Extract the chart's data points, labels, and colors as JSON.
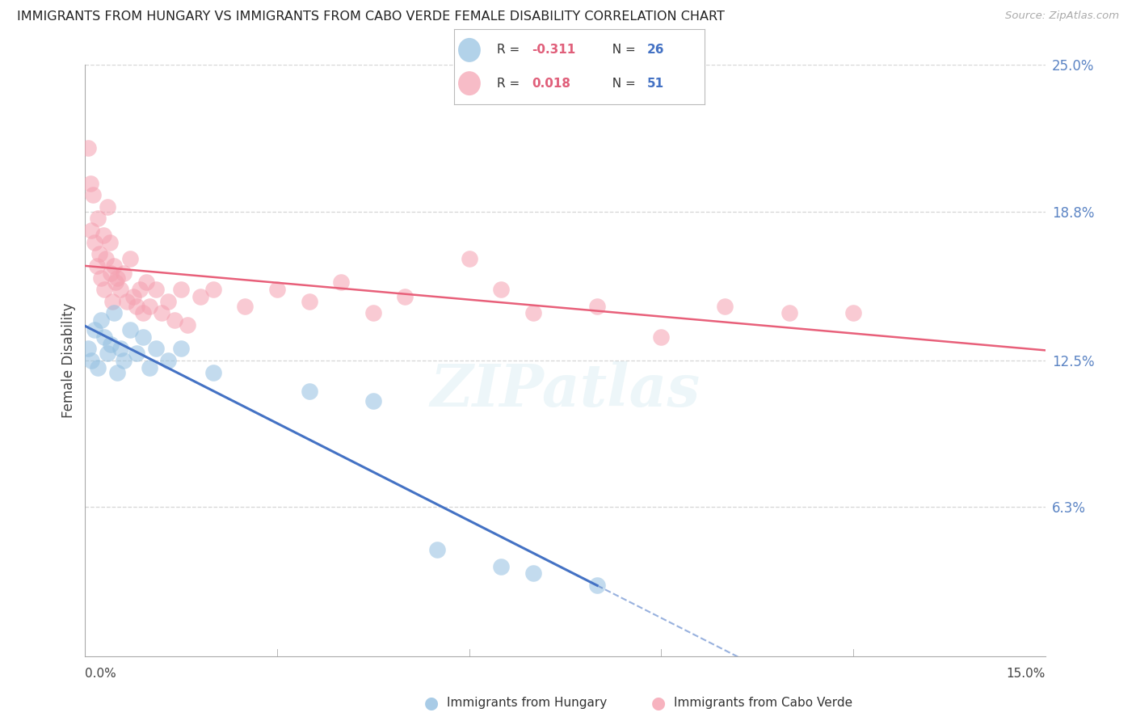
{
  "title": "IMMIGRANTS FROM HUNGARY VS IMMIGRANTS FROM CABO VERDE FEMALE DISABILITY CORRELATION CHART",
  "source": "Source: ZipAtlas.com",
  "ylabel": "Female Disability",
  "right_ytick_vals": [
    6.3,
    12.5,
    18.8,
    25.0
  ],
  "right_ytick_labels": [
    "6.3%",
    "12.5%",
    "18.8%",
    "25.0%"
  ],
  "xmin": 0.0,
  "xmax": 15.0,
  "ymin": 0.0,
  "ymax": 25.0,
  "hungary_color": "#92bfe0",
  "caboverde_color": "#f5a0b0",
  "hungary_R": -0.311,
  "hungary_N": 26,
  "caboverde_R": 0.018,
  "caboverde_N": 51,
  "hungary_points": [
    [
      0.05,
      13.0
    ],
    [
      0.1,
      12.5
    ],
    [
      0.15,
      13.8
    ],
    [
      0.2,
      12.2
    ],
    [
      0.25,
      14.2
    ],
    [
      0.3,
      13.5
    ],
    [
      0.35,
      12.8
    ],
    [
      0.4,
      13.2
    ],
    [
      0.45,
      14.5
    ],
    [
      0.5,
      12.0
    ],
    [
      0.55,
      13.0
    ],
    [
      0.6,
      12.5
    ],
    [
      0.7,
      13.8
    ],
    [
      0.8,
      12.8
    ],
    [
      0.9,
      13.5
    ],
    [
      1.0,
      12.2
    ],
    [
      1.1,
      13.0
    ],
    [
      1.3,
      12.5
    ],
    [
      1.5,
      13.0
    ],
    [
      2.0,
      12.0
    ],
    [
      3.5,
      11.2
    ],
    [
      4.5,
      10.8
    ],
    [
      5.5,
      4.5
    ],
    [
      6.5,
      3.8
    ],
    [
      7.0,
      3.5
    ],
    [
      8.0,
      3.0
    ]
  ],
  "caboverde_points": [
    [
      0.05,
      21.5
    ],
    [
      0.08,
      20.0
    ],
    [
      0.1,
      18.0
    ],
    [
      0.12,
      19.5
    ],
    [
      0.15,
      17.5
    ],
    [
      0.18,
      16.5
    ],
    [
      0.2,
      18.5
    ],
    [
      0.22,
      17.0
    ],
    [
      0.25,
      16.0
    ],
    [
      0.28,
      17.8
    ],
    [
      0.3,
      15.5
    ],
    [
      0.32,
      16.8
    ],
    [
      0.35,
      19.0
    ],
    [
      0.38,
      17.5
    ],
    [
      0.4,
      16.2
    ],
    [
      0.42,
      15.0
    ],
    [
      0.45,
      16.5
    ],
    [
      0.48,
      15.8
    ],
    [
      0.5,
      16.0
    ],
    [
      0.55,
      15.5
    ],
    [
      0.6,
      16.2
    ],
    [
      0.65,
      15.0
    ],
    [
      0.7,
      16.8
    ],
    [
      0.75,
      15.2
    ],
    [
      0.8,
      14.8
    ],
    [
      0.85,
      15.5
    ],
    [
      0.9,
      14.5
    ],
    [
      0.95,
      15.8
    ],
    [
      1.0,
      14.8
    ],
    [
      1.1,
      15.5
    ],
    [
      1.2,
      14.5
    ],
    [
      1.3,
      15.0
    ],
    [
      1.4,
      14.2
    ],
    [
      1.5,
      15.5
    ],
    [
      1.6,
      14.0
    ],
    [
      1.8,
      15.2
    ],
    [
      2.0,
      15.5
    ],
    [
      2.5,
      14.8
    ],
    [
      3.0,
      15.5
    ],
    [
      3.5,
      15.0
    ],
    [
      4.0,
      15.8
    ],
    [
      4.5,
      14.5
    ],
    [
      5.0,
      15.2
    ],
    [
      6.0,
      16.8
    ],
    [
      6.5,
      15.5
    ],
    [
      7.0,
      14.5
    ],
    [
      8.0,
      14.8
    ],
    [
      9.0,
      13.5
    ],
    [
      10.0,
      14.8
    ],
    [
      11.0,
      14.5
    ],
    [
      12.0,
      14.5
    ]
  ],
  "background_color": "#ffffff",
  "grid_color": "#cccccc",
  "trend_color_hungary": "#4472c4",
  "trend_color_caboverde": "#e8607a",
  "watermark_text": "ZIPatlas",
  "watermark_color": "#add8e6",
  "legend_r_hungary": "-0.311",
  "legend_n_hungary": "26",
  "legend_r_caboverde": "0.018",
  "legend_n_caboverde": "51"
}
